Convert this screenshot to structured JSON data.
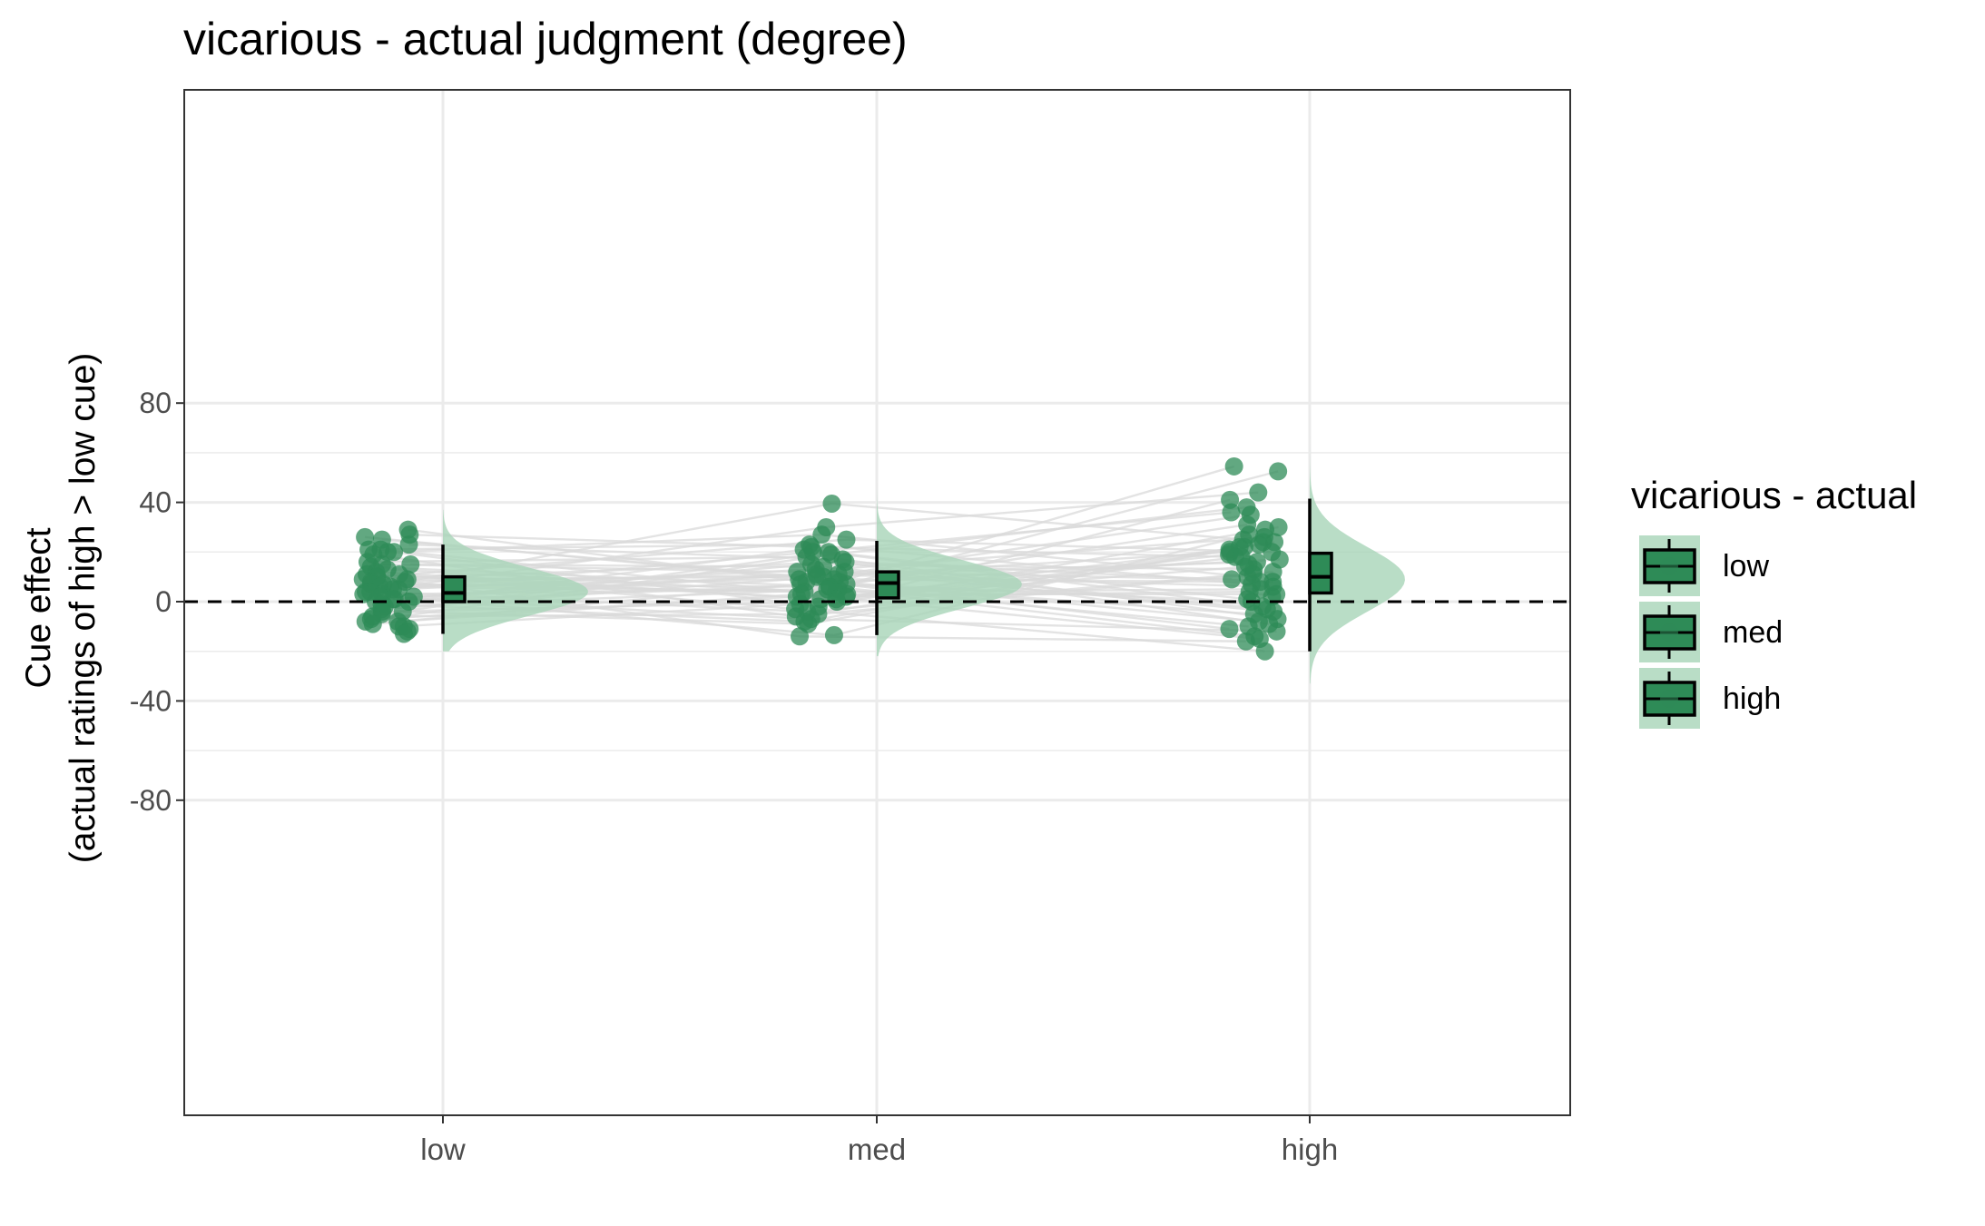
{
  "chart_data": {
    "type": "raincloud",
    "title": "vicarious  - actual judgment (degree)",
    "xlabel": "",
    "ylabel_lines": [
      "Cue effect",
      "(actual ratings of high > low cue)"
    ],
    "categories": [
      "low",
      "med",
      "high"
    ],
    "ylim": [
      -82,
      82
    ],
    "yticks": [
      -80,
      -40,
      0,
      40,
      80
    ],
    "ytick_labels": [
      "-80",
      "-40",
      "0",
      "40",
      "80"
    ],
    "reference_line": 0,
    "grid": true,
    "legend": {
      "title": "vicarious  - actual",
      "position": "right",
      "entries": [
        "low",
        "med",
        "high"
      ]
    },
    "colors": {
      "point": "#2e8b57",
      "box_fill": "#2e8b57",
      "density": "#a8d5b8",
      "connector": "#d9d9d9",
      "grid": "#ebebeb"
    },
    "boxplots": [
      {
        "category": "low",
        "whisker_low": -13,
        "q1": 0,
        "median": 3.5,
        "q3": 10,
        "whisker_high": 23
      },
      {
        "category": "med",
        "whisker_low": -13.5,
        "q1": 1.5,
        "median": 7.5,
        "q3": 12,
        "whisker_high": 24.5
      },
      {
        "category": "high",
        "whisker_low": -20,
        "q1": 3.5,
        "median": 10,
        "q3": 19.5,
        "whisker_high": 41.5
      }
    ],
    "density_range": [
      {
        "category": "low",
        "min": -20,
        "max": 37,
        "mode": 4
      },
      {
        "category": "med",
        "min": -22,
        "max": 48,
        "mode": 7
      },
      {
        "category": "high",
        "min": -33,
        "max": 67,
        "mode": 9
      }
    ],
    "points": {
      "low": [
        29,
        27,
        26,
        25,
        23,
        21,
        21,
        20,
        20,
        19,
        16,
        15,
        15,
        14,
        13,
        12,
        11,
        11,
        10,
        10,
        9,
        9,
        8,
        8,
        7,
        7,
        6,
        6,
        5,
        5,
        4,
        4,
        3,
        3,
        2,
        2,
        1,
        1,
        0,
        0,
        -1,
        -2,
        -3,
        -4,
        -4,
        -5,
        -6,
        -7,
        -8,
        -8,
        -9,
        -10,
        -10,
        -11,
        -12,
        -13
      ],
      "med": [
        39.5,
        30,
        27,
        25,
        23,
        22,
        21,
        20,
        20,
        19,
        18,
        17,
        16,
        15,
        14,
        13,
        12,
        12,
        11,
        11,
        10,
        10,
        9,
        9,
        8,
        8,
        7,
        7,
        6,
        6,
        5,
        5,
        4,
        4,
        3,
        3,
        2,
        2,
        1,
        1,
        0,
        -1,
        -2,
        -3,
        -4,
        -5,
        -6,
        -7,
        -8,
        -9,
        -13.5,
        -14
      ],
      "high": [
        54.5,
        52.5,
        44,
        41,
        38,
        36,
        35,
        31,
        30,
        29,
        27,
        26,
        25,
        24,
        24,
        23,
        22,
        22,
        21,
        20,
        20,
        19,
        18,
        18,
        17,
        16,
        15,
        14,
        13,
        12,
        11,
        10,
        9,
        8,
        8,
        7,
        6,
        5,
        4,
        3,
        2,
        1,
        0,
        -2,
        -3,
        -4,
        -5,
        -7,
        -8,
        -9,
        -10,
        -11,
        -12,
        -14,
        -15,
        -16,
        -20
      ]
    }
  }
}
